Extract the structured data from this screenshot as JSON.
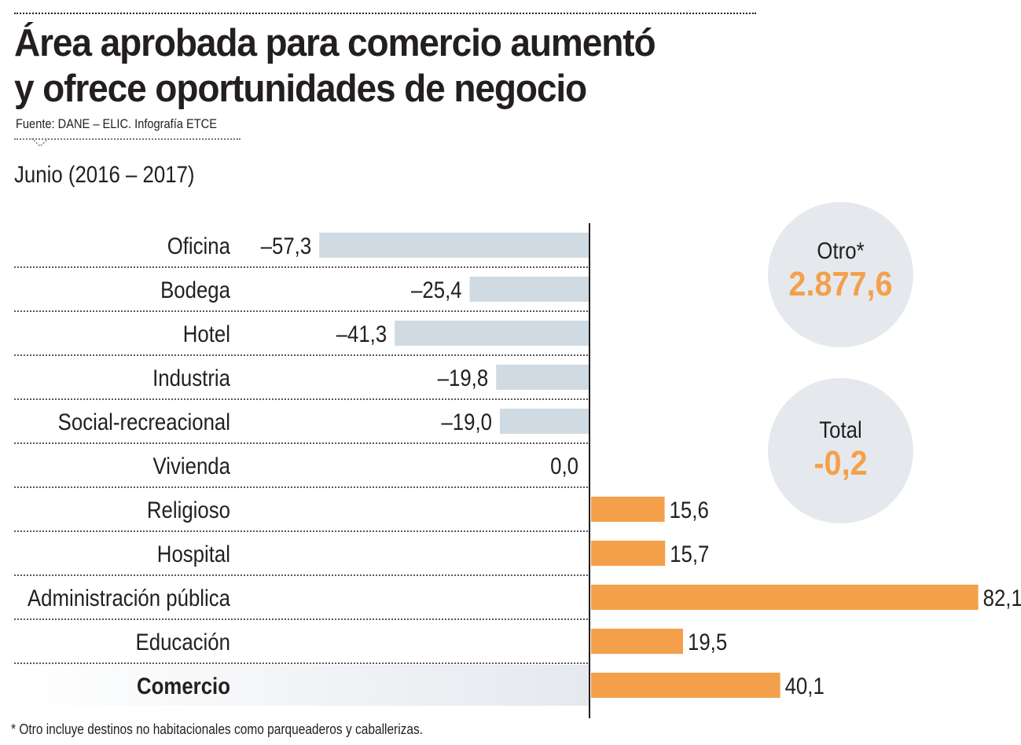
{
  "title_line1": "Área aprobada para comercio aumentó",
  "title_line2": "y ofrece oportunidades de negocio",
  "source": "Fuente: DANE – ELIC. Infografía ETCE",
  "subtitle": "Junio (2016 – 2017)",
  "colors": {
    "negative": "#d0dae2",
    "positive": "#f4a04b",
    "highlight": "#f4a04b",
    "circle_bg": "#e5e9ee"
  },
  "chart_data": {
    "type": "bar",
    "orientation": "horizontal",
    "categories": [
      "Oficina",
      "Bodega",
      "Hotel",
      "Industria",
      "Social-recreacional",
      "Vivienda",
      "Religioso",
      "Hospital",
      "Administración pública",
      "Educación",
      "Comercio"
    ],
    "values": [
      -57.3,
      -25.4,
      -41.3,
      -19.8,
      -19.0,
      0.0,
      15.6,
      15.7,
      82.1,
      19.5,
      40.1
    ],
    "value_labels": [
      "–57,3",
      "–25,4",
      "–41,3",
      "–19,8",
      "–19,0",
      "0,0",
      "15,6",
      "15,7",
      "82,1",
      "19,5",
      "40,1"
    ],
    "emphasized_category": "Comercio",
    "title": "Área aprobada para comercio aumentó y ofrece oportunidades de negocio",
    "xlabel": "",
    "ylabel": "",
    "grid": false
  },
  "callouts": {
    "otro": {
      "label": "Otro*",
      "value": "2.877,6"
    },
    "total": {
      "label": "Total",
      "value": "-0,2"
    }
  },
  "footnote": "* Otro incluye destinos no habitacionales como parqueaderos y caballerizas."
}
